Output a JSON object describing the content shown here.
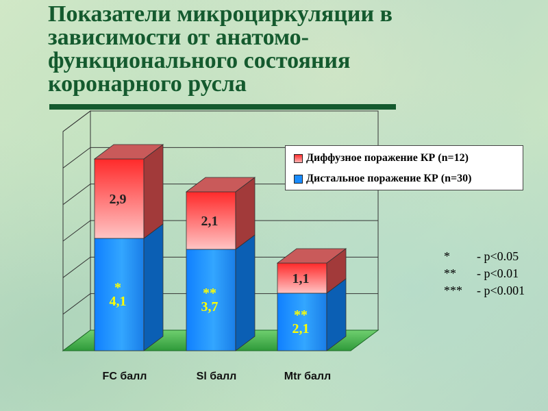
{
  "title": "Показатели микроциркуляции в зависимости от анатомо-функционального состояния коронарного русла",
  "colors": {
    "title": "#145a2e",
    "diffuse": "#ff3b3b",
    "distal": "#1a8cff",
    "floor": "#3aa83a",
    "significance": "#ffff00"
  },
  "chart_data": {
    "type": "bar",
    "stacked": true,
    "three_d": true,
    "categories": [
      "FC балл",
      "Sl балл",
      "Mtr балл"
    ],
    "series": [
      {
        "name": "Дистальное поражение КР (n=30)",
        "values": [
          4.1,
          3.7,
          2.1
        ],
        "labels": [
          "4,1",
          "3,7",
          "2,1"
        ],
        "significance": [
          "*",
          "**",
          "**"
        ]
      },
      {
        "name": "Диффузное поражение КР (n=12)",
        "values": [
          2.9,
          2.1,
          1.1
        ],
        "labels": [
          "2,9",
          "2,1",
          "1,1"
        ]
      }
    ],
    "ylim": [
      0,
      8
    ],
    "grid": true,
    "legend_position": "top-right"
  },
  "notes": [
    {
      "mark": "*",
      "text": "- p<0.05"
    },
    {
      "mark": "**",
      "text": "- p<0.01"
    },
    {
      "mark": "***",
      "text": "- p<0.001"
    }
  ]
}
